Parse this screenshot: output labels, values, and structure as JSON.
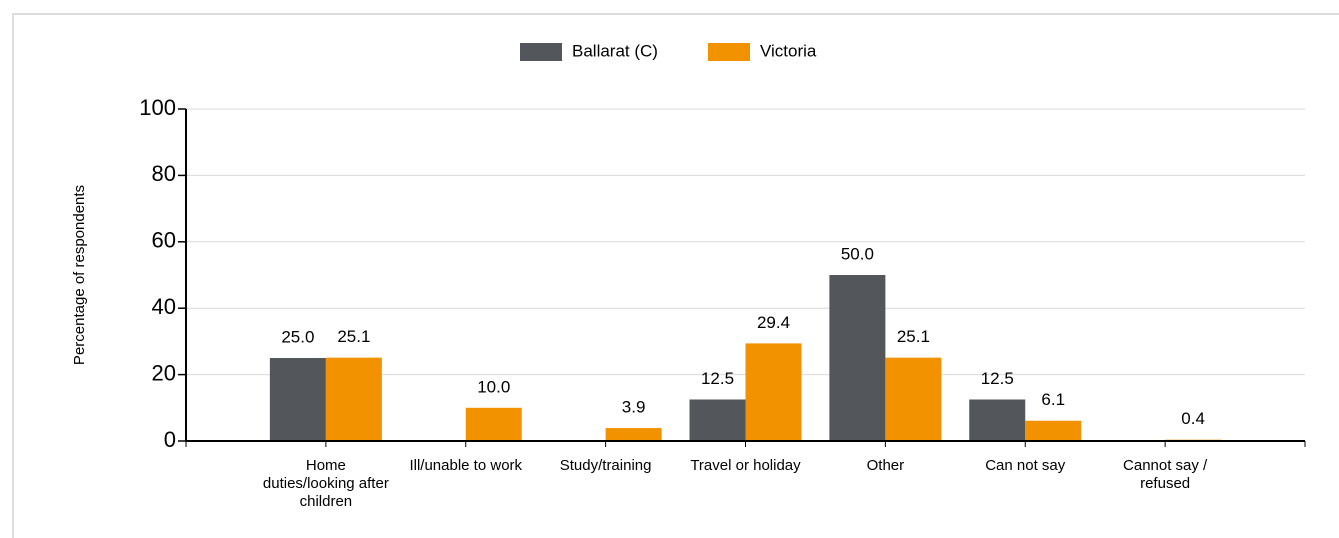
{
  "chart_data": {
    "type": "bar",
    "y_label": "Percentage of respondents",
    "categories": [
      "Home duties/looking after children",
      "Ill/unable to work",
      "Study/training",
      "Travel or holiday",
      "Other",
      "Can not say",
      "Cannot say / refused"
    ],
    "series": [
      {
        "name": "Ballarat (C)",
        "color": "#53565a",
        "values": [
          25,
          null,
          null,
          12.5,
          50,
          12.5,
          null
        ],
        "value_labels": [
          "25.0",
          null,
          null,
          "12.5",
          "50.0",
          "12.5",
          null
        ]
      },
      {
        "name": "Victoria",
        "color": "#f39200",
        "values": [
          25.1,
          10,
          3.9,
          29.4,
          25.1,
          6.1,
          0.4
        ],
        "value_labels": [
          "25.1",
          "10.0",
          "3.9",
          "29.4",
          "25.1",
          "6.1",
          "0.4"
        ]
      }
    ],
    "ylim": [
      0,
      100
    ],
    "yticks": [
      0,
      20,
      40,
      60,
      80,
      100
    ],
    "grid": true
  }
}
